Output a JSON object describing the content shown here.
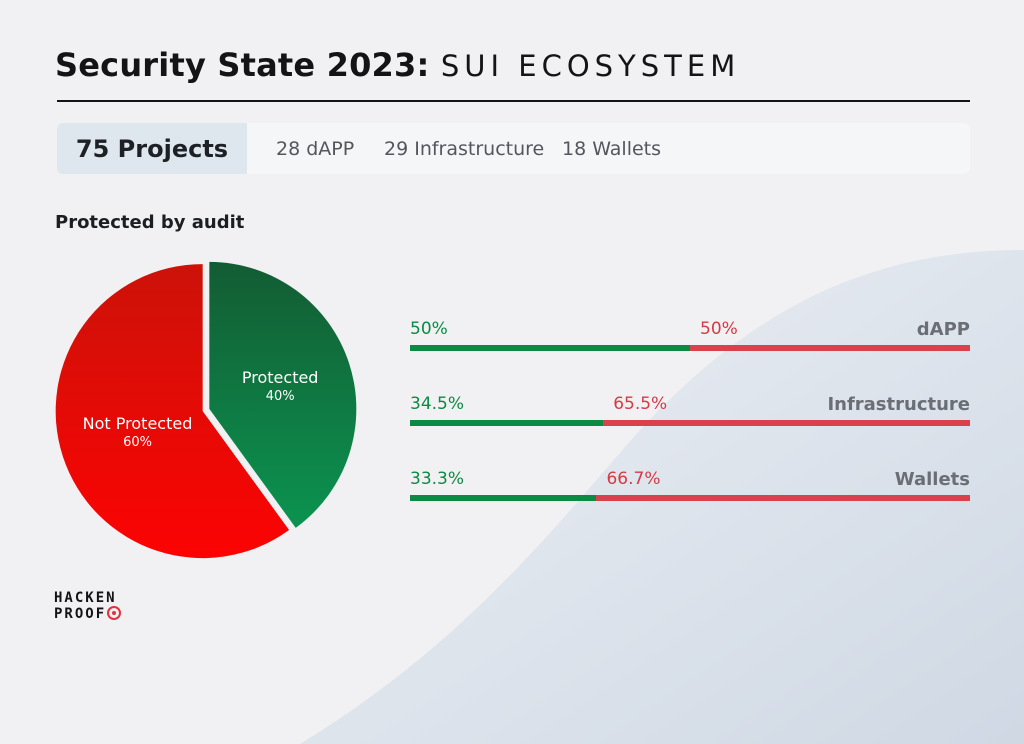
{
  "header": {
    "title_main": "Security State 2023",
    "title_sep": ": ",
    "title_sub": "SUI ECOSYSTEM"
  },
  "stats": {
    "total": "75 Projects",
    "items": [
      "28 dAPP",
      "29 Infrastructure",
      "18 Wallets"
    ]
  },
  "section_title": "Protected by audit",
  "brand": {
    "logo_line1": "HACKEN",
    "logo_line2": "PROOF",
    "accent_color": "#e2313c"
  },
  "colors": {
    "protected": "#0c8a43",
    "not_protected": "#d9414d",
    "background": "#f1f1f3"
  },
  "chart_data": [
    {
      "type": "pie",
      "title": "Protected by audit",
      "slices": [
        {
          "label": "Protected",
          "value": 40,
          "value_label": "40%",
          "color_top": "#135c33",
          "color_bottom": "#0b9350"
        },
        {
          "label": "Not Protected",
          "value": 60,
          "value_label": "60%",
          "color_top": "#cc1209",
          "color_bottom": "#fc0303"
        }
      ]
    },
    {
      "type": "bar",
      "stacked": true,
      "orientation": "horizontal",
      "categories": [
        "dAPP",
        "Infrastructure",
        "Wallets"
      ],
      "series": [
        {
          "name": "Protected",
          "values": [
            50,
            34.5,
            33.3
          ],
          "labels": [
            "50%",
            "34.5%",
            "33.3%"
          ]
        },
        {
          "name": "Not Protected",
          "values": [
            50,
            65.5,
            66.7
          ],
          "labels": [
            "50%",
            "65.5%",
            "66.7%"
          ]
        }
      ],
      "xlim": [
        0,
        100
      ]
    }
  ]
}
